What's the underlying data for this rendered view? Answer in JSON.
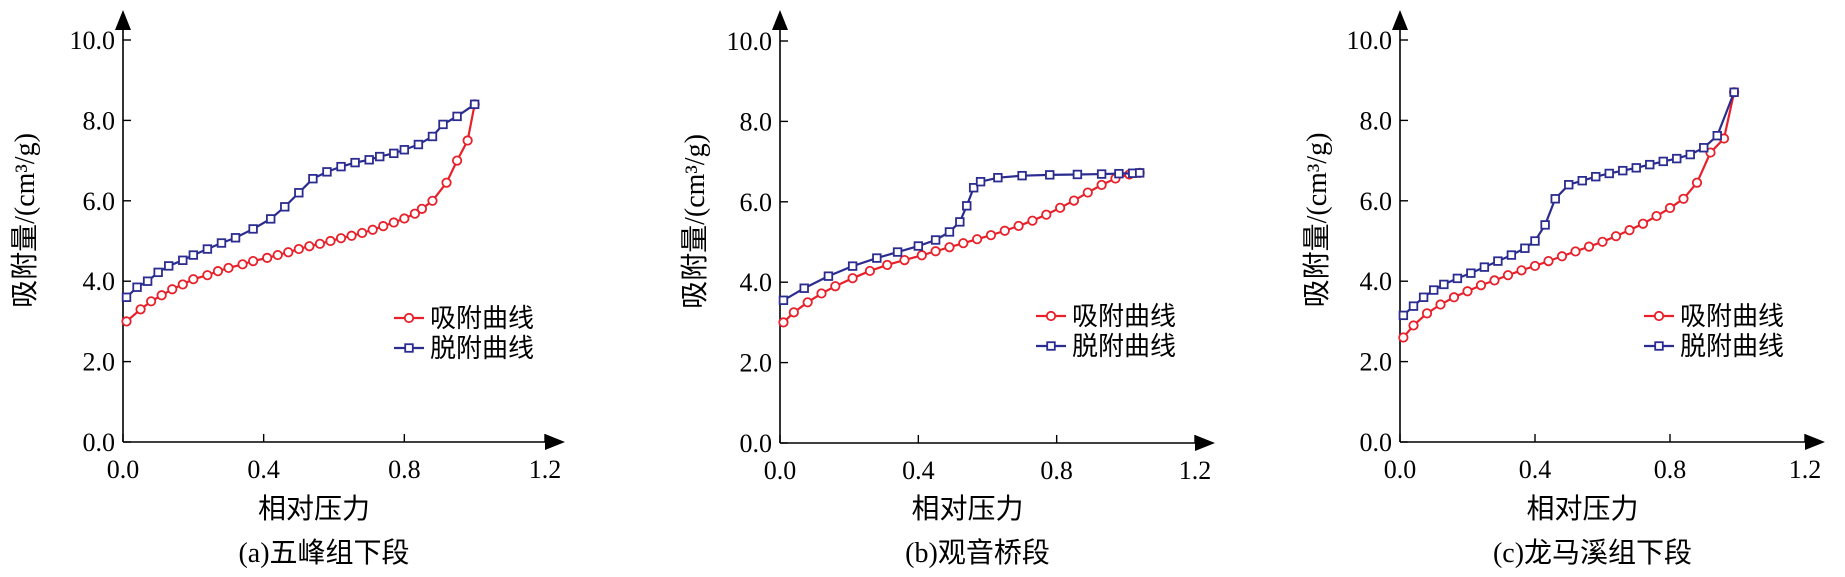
{
  "colors": {
    "adsorption": "#e8202a",
    "desorption": "#2b2c8f",
    "axis": "#000000"
  },
  "chart_data": [
    {
      "type": "line",
      "caption": "(a)五峰组下段",
      "xlabel": "相对压力",
      "ylabel": "吸附量/(cm³/g)",
      "xlim": [
        0,
        1.2
      ],
      "ylim": [
        0,
        10
      ],
      "xticks": [
        "0.0",
        "0.4",
        "0.8",
        "1.2"
      ],
      "yticks": [
        "0.0",
        "2.0",
        "4.0",
        "6.0",
        "8.0",
        "10.0"
      ],
      "legend_position": "right-center",
      "grid": false,
      "series": [
        {
          "name": "吸附曲线",
          "marker": "circle",
          "color": "#e8202a",
          "x": [
            0.01,
            0.05,
            0.08,
            0.11,
            0.14,
            0.17,
            0.2,
            0.24,
            0.27,
            0.3,
            0.34,
            0.37,
            0.41,
            0.44,
            0.47,
            0.5,
            0.53,
            0.56,
            0.59,
            0.62,
            0.65,
            0.68,
            0.71,
            0.74,
            0.77,
            0.8,
            0.83,
            0.85,
            0.88,
            0.92,
            0.95,
            0.98,
            1.0
          ],
          "y": [
            3.0,
            3.3,
            3.5,
            3.65,
            3.8,
            3.92,
            4.05,
            4.15,
            4.25,
            4.33,
            4.42,
            4.5,
            4.58,
            4.65,
            4.72,
            4.8,
            4.87,
            4.93,
            5.0,
            5.07,
            5.13,
            5.2,
            5.28,
            5.37,
            5.46,
            5.56,
            5.68,
            5.8,
            6.0,
            6.45,
            7.0,
            7.5,
            8.4
          ]
        },
        {
          "name": "脱附曲线",
          "marker": "square",
          "color": "#2b2c8f",
          "x": [
            0.01,
            0.04,
            0.07,
            0.1,
            0.13,
            0.17,
            0.2,
            0.24,
            0.28,
            0.32,
            0.37,
            0.42,
            0.46,
            0.5,
            0.54,
            0.58,
            0.62,
            0.66,
            0.7,
            0.73,
            0.77,
            0.8,
            0.84,
            0.88,
            0.91,
            0.95,
            1.0
          ],
          "y": [
            3.6,
            3.85,
            4.0,
            4.22,
            4.38,
            4.52,
            4.65,
            4.8,
            4.95,
            5.08,
            5.3,
            5.55,
            5.85,
            6.2,
            6.55,
            6.72,
            6.85,
            6.95,
            7.02,
            7.1,
            7.18,
            7.27,
            7.4,
            7.6,
            7.9,
            8.1,
            8.4
          ]
        }
      ]
    },
    {
      "type": "line",
      "caption": "(b)观音桥段",
      "xlabel": "相对压力",
      "ylabel": "吸附量/(cm³/g)",
      "xlim": [
        0,
        1.2
      ],
      "ylim": [
        0,
        10
      ],
      "xticks": [
        "0.0",
        "0.4",
        "0.8",
        "1.2"
      ],
      "yticks": [
        "0.0",
        "2.0",
        "4.0",
        "6.0",
        "8.0",
        "10.0"
      ],
      "legend_position": "right-center",
      "grid": false,
      "series": [
        {
          "name": "吸附曲线",
          "marker": "circle",
          "color": "#e8202a",
          "x": [
            0.01,
            0.04,
            0.08,
            0.12,
            0.16,
            0.21,
            0.26,
            0.31,
            0.36,
            0.41,
            0.45,
            0.49,
            0.53,
            0.57,
            0.61,
            0.65,
            0.69,
            0.73,
            0.77,
            0.81,
            0.85,
            0.89,
            0.93,
            0.97,
            1.01,
            1.04
          ],
          "y": [
            3.0,
            3.25,
            3.5,
            3.72,
            3.9,
            4.1,
            4.28,
            4.43,
            4.55,
            4.67,
            4.77,
            4.87,
            4.97,
            5.07,
            5.17,
            5.28,
            5.4,
            5.53,
            5.68,
            5.85,
            6.03,
            6.23,
            6.42,
            6.58,
            6.68,
            6.72
          ]
        },
        {
          "name": "脱附曲线",
          "marker": "square",
          "color": "#2b2c8f",
          "x": [
            0.01,
            0.07,
            0.14,
            0.21,
            0.28,
            0.34,
            0.4,
            0.45,
            0.49,
            0.52,
            0.54,
            0.56,
            0.58,
            0.63,
            0.7,
            0.78,
            0.86,
            0.93,
            0.98,
            1.02,
            1.04
          ],
          "y": [
            3.55,
            3.85,
            4.15,
            4.4,
            4.6,
            4.75,
            4.9,
            5.05,
            5.25,
            5.5,
            5.9,
            6.35,
            6.5,
            6.6,
            6.65,
            6.67,
            6.68,
            6.69,
            6.7,
            6.71,
            6.72
          ]
        }
      ]
    },
    {
      "type": "line",
      "caption": "(c)龙马溪组下段",
      "xlabel": "相对压力",
      "ylabel": "吸附量/(cm³/g)",
      "xlim": [
        0,
        1.2
      ],
      "ylim": [
        0,
        10
      ],
      "xticks": [
        "0.0",
        "0.4",
        "0.8",
        "1.2"
      ],
      "yticks": [
        "0.0",
        "2.0",
        "4.0",
        "6.0",
        "8.0",
        "10.0"
      ],
      "legend_position": "right-center",
      "grid": false,
      "series": [
        {
          "name": "吸附曲线",
          "marker": "circle",
          "color": "#e8202a",
          "x": [
            0.01,
            0.04,
            0.08,
            0.12,
            0.16,
            0.2,
            0.24,
            0.28,
            0.32,
            0.36,
            0.4,
            0.44,
            0.48,
            0.52,
            0.56,
            0.6,
            0.64,
            0.68,
            0.72,
            0.76,
            0.8,
            0.84,
            0.88,
            0.92,
            0.96,
            0.99
          ],
          "y": [
            2.6,
            2.9,
            3.2,
            3.42,
            3.6,
            3.75,
            3.9,
            4.02,
            4.15,
            4.27,
            4.38,
            4.5,
            4.62,
            4.74,
            4.86,
            4.98,
            5.12,
            5.27,
            5.43,
            5.62,
            5.82,
            6.05,
            6.45,
            7.2,
            7.55,
            8.7
          ]
        },
        {
          "name": "脱附曲线",
          "marker": "square",
          "color": "#2b2c8f",
          "x": [
            0.01,
            0.04,
            0.07,
            0.1,
            0.13,
            0.17,
            0.21,
            0.25,
            0.29,
            0.33,
            0.37,
            0.4,
            0.43,
            0.46,
            0.5,
            0.54,
            0.58,
            0.62,
            0.66,
            0.7,
            0.74,
            0.78,
            0.82,
            0.86,
            0.9,
            0.94,
            0.99
          ],
          "y": [
            3.15,
            3.38,
            3.6,
            3.78,
            3.92,
            4.07,
            4.2,
            4.35,
            4.5,
            4.65,
            4.82,
            5.0,
            5.4,
            6.05,
            6.4,
            6.5,
            6.6,
            6.68,
            6.75,
            6.82,
            6.9,
            6.98,
            7.05,
            7.15,
            7.32,
            7.62,
            8.7
          ]
        }
      ]
    }
  ]
}
